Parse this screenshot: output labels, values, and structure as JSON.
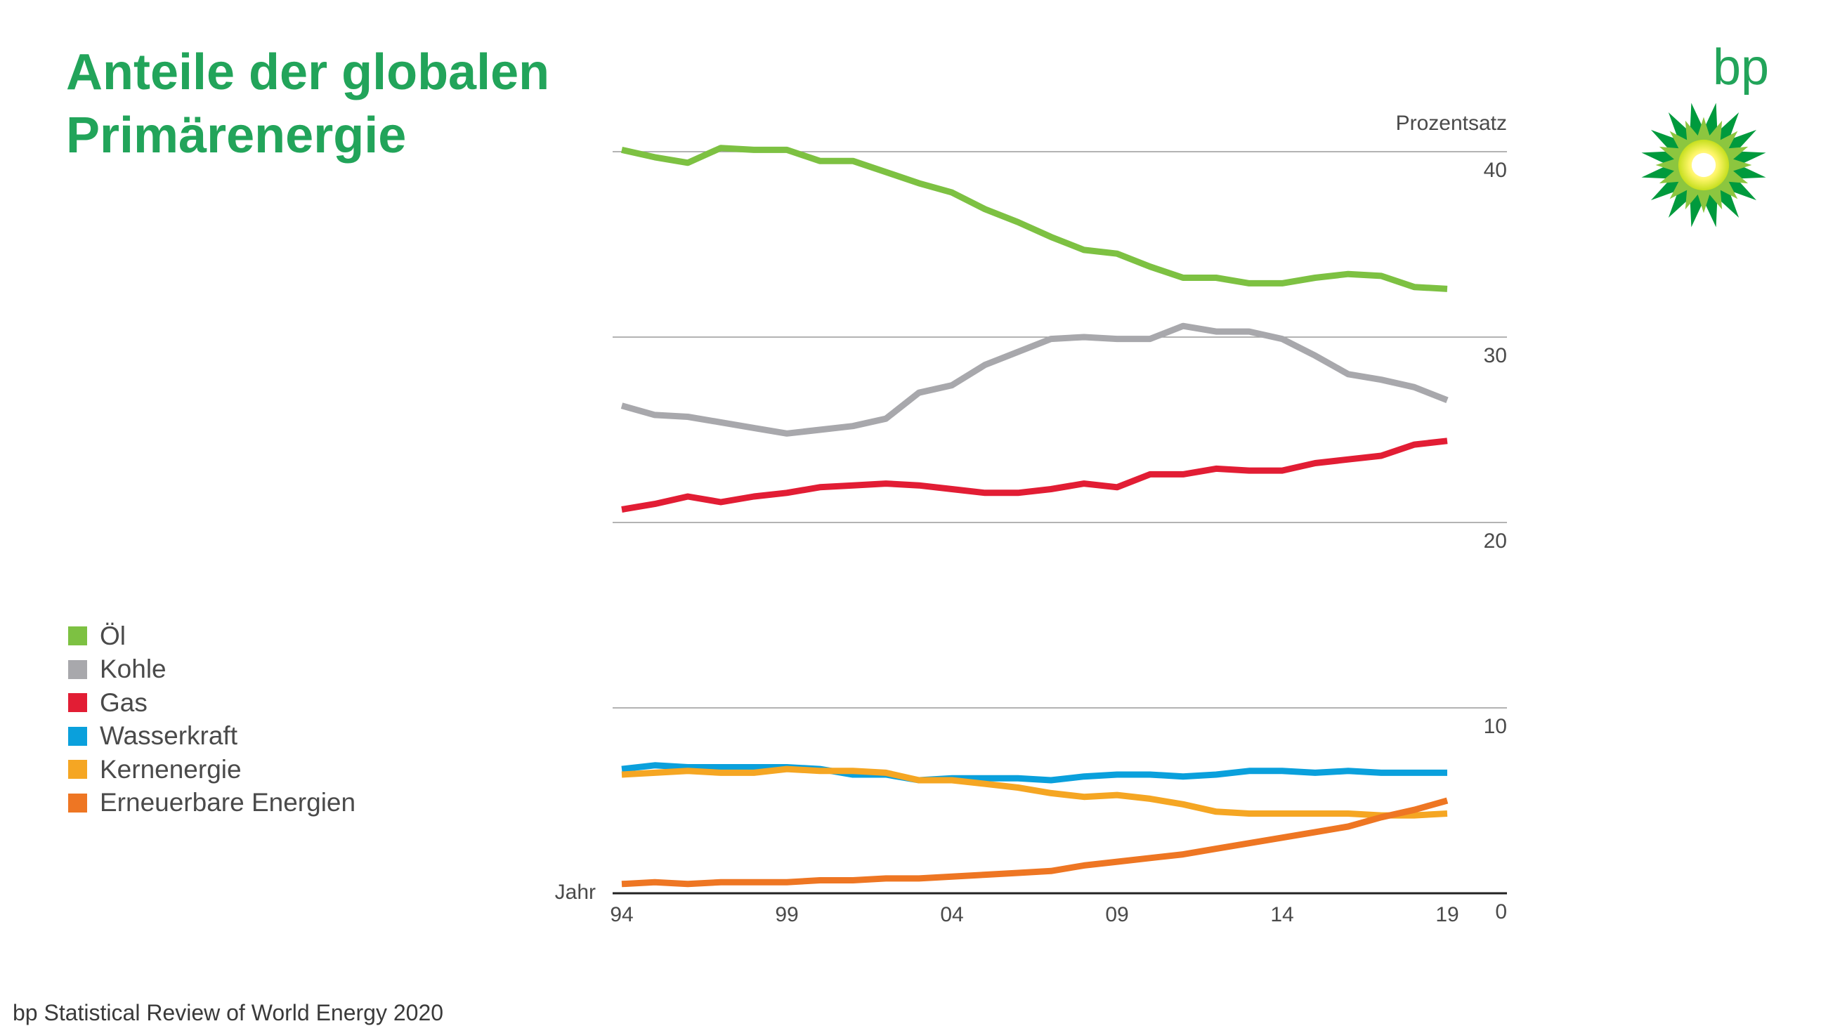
{
  "header": {
    "title_line1": "Anteile der globalen",
    "title_line2": "Primärenergie"
  },
  "logo": {
    "text": "bp",
    "icon": "bp-helios-icon"
  },
  "footer": {
    "source": "bp Statistical Review of World Energy 2020"
  },
  "colors": {
    "title": "#22a45a",
    "oel": "#7dc142",
    "kohle": "#a8a8ac",
    "gas": "#e21d34",
    "wasserkraft": "#0aa0dc",
    "kernenergie": "#f5a623",
    "erneuerbare": "#ee7623"
  },
  "chart_data": {
    "type": "line",
    "ylabel": "Prozentsatz",
    "xlabel": "Jahr",
    "ylim": [
      0,
      40
    ],
    "yticks": [
      0,
      10,
      20,
      30,
      40
    ],
    "x": [
      1994,
      1995,
      1996,
      1997,
      1998,
      1999,
      2000,
      2001,
      2002,
      2003,
      2004,
      2005,
      2006,
      2007,
      2008,
      2009,
      2010,
      2011,
      2012,
      2013,
      2014,
      2015,
      2016,
      2017,
      2018,
      2019
    ],
    "xticks": [
      {
        "value": 1994,
        "label": "94"
      },
      {
        "value": 1999,
        "label": "99"
      },
      {
        "value": 2004,
        "label": "04"
      },
      {
        "value": 2009,
        "label": "09"
      },
      {
        "value": 2014,
        "label": "14"
      },
      {
        "value": 2019,
        "label": "19"
      }
    ],
    "grid": true,
    "legend_position": "left",
    "series": [
      {
        "name": "Öl",
        "color": "#7dc142",
        "values": [
          40.1,
          39.7,
          39.4,
          40.2,
          40.1,
          40.1,
          39.5,
          39.5,
          38.9,
          38.3,
          37.8,
          36.9,
          36.2,
          35.4,
          34.7,
          34.5,
          33.8,
          33.2,
          33.2,
          32.9,
          32.9,
          33.2,
          33.4,
          33.3,
          32.7,
          32.6
        ]
      },
      {
        "name": "Kohle",
        "color": "#a8a8ac",
        "values": [
          26.3,
          25.8,
          25.7,
          25.4,
          25.1,
          24.8,
          25.0,
          25.2,
          25.6,
          27.0,
          27.4,
          28.5,
          29.2,
          29.9,
          30.0,
          29.9,
          29.9,
          30.6,
          30.3,
          30.3,
          29.9,
          29.0,
          28.0,
          27.7,
          27.3,
          26.6
        ]
      },
      {
        "name": "Gas",
        "color": "#e21d34",
        "values": [
          20.7,
          21.0,
          21.4,
          21.1,
          21.4,
          21.6,
          21.9,
          22.0,
          22.1,
          22.0,
          21.8,
          21.6,
          21.6,
          21.8,
          22.1,
          21.9,
          22.6,
          22.6,
          22.9,
          22.8,
          22.8,
          23.2,
          23.4,
          23.6,
          24.2,
          24.4
        ]
      },
      {
        "name": "Wasserkraft",
        "color": "#0aa0dc",
        "values": [
          6.7,
          6.9,
          6.8,
          6.8,
          6.8,
          6.8,
          6.7,
          6.4,
          6.4,
          6.1,
          6.2,
          6.2,
          6.2,
          6.1,
          6.3,
          6.4,
          6.4,
          6.3,
          6.4,
          6.6,
          6.6,
          6.5,
          6.6,
          6.5,
          6.5,
          6.5
        ]
      },
      {
        "name": "Kernenergie",
        "color": "#f5a623",
        "values": [
          6.4,
          6.5,
          6.6,
          6.5,
          6.5,
          6.7,
          6.6,
          6.6,
          6.5,
          6.1,
          6.1,
          5.9,
          5.7,
          5.4,
          5.2,
          5.3,
          5.1,
          4.8,
          4.4,
          4.3,
          4.3,
          4.3,
          4.3,
          4.2,
          4.2,
          4.3
        ]
      },
      {
        "name": "Erneuerbare Energien",
        "color": "#ee7623",
        "values": [
          0.5,
          0.6,
          0.5,
          0.6,
          0.6,
          0.6,
          0.7,
          0.7,
          0.8,
          0.8,
          0.9,
          1.0,
          1.1,
          1.2,
          1.5,
          1.7,
          1.9,
          2.1,
          2.4,
          2.7,
          3.0,
          3.3,
          3.6,
          4.1,
          4.5,
          5.0
        ]
      }
    ]
  }
}
